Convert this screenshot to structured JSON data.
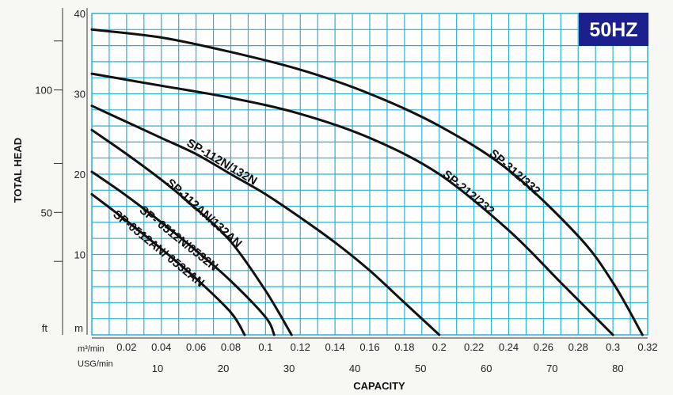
{
  "chart_data": {
    "type": "line",
    "title": "50HZ",
    "badge_color": "#1c1f8e",
    "grid_color": "#27b2d6",
    "curve_color": "#111111",
    "xlabel": "CAPACITY",
    "ylabel": "TOTAL HEAD",
    "x_unit_primary": "m³/min",
    "x_unit_secondary": "USG/min",
    "y_unit_primary": "m",
    "y_unit_secondary": "ft",
    "xlim": [
      0,
      0.32
    ],
    "ylim": [
      0,
      40
    ],
    "grid": true,
    "x_ticks_m3": [
      "0.02",
      "0.04",
      "0.06",
      "0.08",
      "0.1",
      "0.12",
      "0.14",
      "0.16",
      "0.18",
      "0.2",
      "0.22",
      "0.24",
      "0.26",
      "0.28",
      "0.3",
      "0.32"
    ],
    "x_ticks_usg": [
      "10",
      "20",
      "30",
      "40",
      "50",
      "60",
      "70",
      "80"
    ],
    "y_ticks_m": [
      "10",
      "20",
      "30",
      "40"
    ],
    "y_ticks_ft": [
      "50",
      "100"
    ],
    "series": [
      {
        "name": "SP-312/332",
        "x": [
          0,
          0.04,
          0.08,
          0.12,
          0.16,
          0.2,
          0.24,
          0.28,
          0.3,
          0.317
        ],
        "y": [
          38,
          37,
          35.2,
          33,
          30,
          26,
          20.5,
          12.3,
          6.5,
          0
        ]
      },
      {
        "name": "SP-212/232",
        "x": [
          0,
          0.04,
          0.08,
          0.12,
          0.16,
          0.2,
          0.24,
          0.27,
          0.3
        ],
        "y": [
          32.5,
          31,
          29.5,
          27.5,
          24.5,
          20,
          13,
          6.5,
          0
        ]
      },
      {
        "name": "SP-112N/132N",
        "x": [
          0,
          0.02,
          0.04,
          0.06,
          0.08,
          0.1,
          0.12,
          0.14,
          0.16,
          0.18,
          0.2
        ],
        "y": [
          28.5,
          26.5,
          24.5,
          22.5,
          20,
          17.5,
          14.6,
          11.5,
          8,
          4,
          0
        ]
      },
      {
        "name": "SP-112AN/132AN",
        "x": [
          0,
          0.02,
          0.04,
          0.06,
          0.08,
          0.1,
          0.115
        ],
        "y": [
          25.5,
          22.5,
          19.3,
          15.7,
          11.6,
          5.5,
          0
        ]
      },
      {
        "name": "SP- 0512N/0532N",
        "x": [
          0,
          0.02,
          0.04,
          0.06,
          0.08,
          0.1,
          0.105
        ],
        "y": [
          20.3,
          17.3,
          14,
          10.5,
          6.7,
          2.2,
          0
        ]
      },
      {
        "name": "SP-0512AN/ 0532AN",
        "x": [
          0,
          0.02,
          0.04,
          0.06,
          0.08,
          0.088
        ],
        "y": [
          17.5,
          14.2,
          10.7,
          7,
          2.8,
          0
        ]
      }
    ]
  }
}
